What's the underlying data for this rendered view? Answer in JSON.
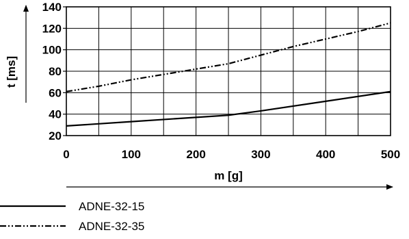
{
  "chart_data": {
    "type": "line",
    "title": "",
    "xlabel": "m [g]",
    "ylabel": "t [ms]",
    "xlim": [
      0,
      500
    ],
    "ylim": [
      20,
      140
    ],
    "x_ticks": [
      0,
      100,
      200,
      300,
      400,
      500
    ],
    "y_ticks": [
      20,
      40,
      60,
      80,
      100,
      120,
      140
    ],
    "grid": true,
    "legend_position": "bottom-left",
    "series": [
      {
        "name": "ADNE-32-15",
        "line_style": "solid",
        "color": "#000000",
        "x": [
          0,
          100,
          200,
          250,
          300,
          400,
          500
        ],
        "y": [
          29,
          33,
          37,
          39,
          43,
          52,
          61
        ]
      },
      {
        "name": "ADNE-32-35",
        "line_style": "dash-dot-dot",
        "color": "#000000",
        "x": [
          0,
          50,
          100,
          150,
          200,
          250,
          300,
          350,
          400,
          450,
          500
        ],
        "y": [
          61,
          66,
          72,
          77,
          82,
          87,
          95,
          103,
          110,
          117,
          125
        ]
      }
    ]
  }
}
